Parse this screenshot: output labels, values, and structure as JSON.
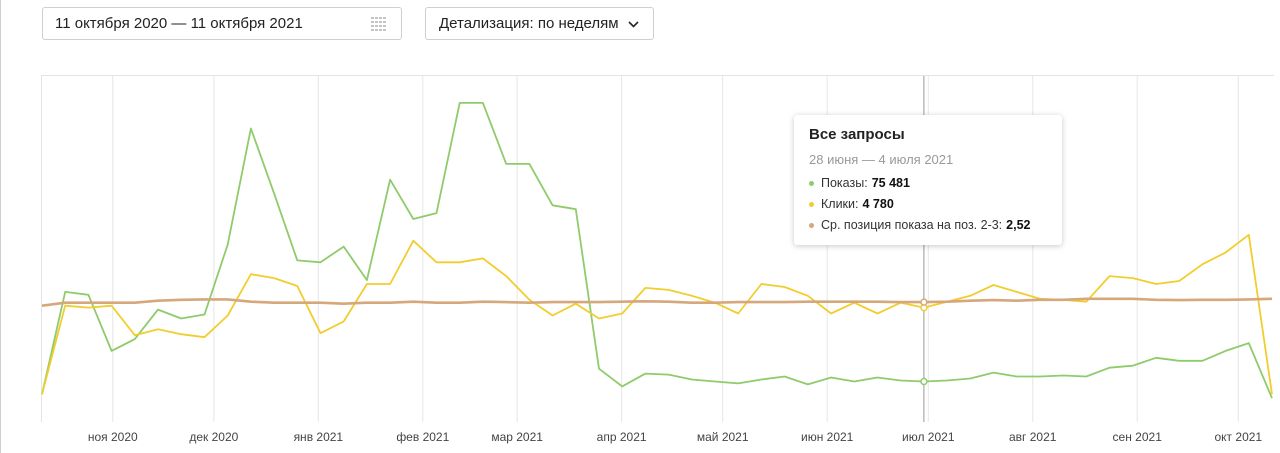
{
  "date_range": {
    "value": "11 октября 2020 — 11 октября 2021",
    "icon": "calendar-icon"
  },
  "detail_select": {
    "label": "Детализация: по неделям",
    "icon": "chevron-down-icon"
  },
  "tooltip": {
    "title": "Все запросы",
    "period": "28 июня — 4 июля 2021",
    "rows": [
      {
        "label": "Показы:",
        "value": "75 481",
        "color": "#8fcb6b"
      },
      {
        "label": "Клики:",
        "value": "4 780",
        "color": "#f2cd2e"
      },
      {
        "label": "Ср. позиция показа на поз. 2-3:",
        "value": "2,52",
        "color": "#d6a77b"
      }
    ]
  },
  "colors": {
    "shows": "#8fcb6b",
    "clicks": "#f2cd2e",
    "position": "#d6a77b",
    "grid": "#e6e6e6",
    "crosshair": "#999999"
  },
  "chart_data": {
    "type": "line",
    "x_start": "2020-10-11",
    "x_end": "2021-10-11",
    "x_tick_labels": [
      "ноя 2020",
      "дек 2020",
      "янв 2021",
      "фев 2021",
      "мар 2021",
      "апр 2021",
      "май 2021",
      "июн 2021",
      "июл 2021",
      "авг 2021",
      "сен 2021",
      "окт 2021"
    ],
    "x_tick_dates": [
      "2020-11-01",
      "2020-12-01",
      "2021-01-01",
      "2021-02-01",
      "2021-03-01",
      "2021-04-01",
      "2021-05-01",
      "2021-06-01",
      "2021-07-01",
      "2021-08-01",
      "2021-09-01",
      "2021-10-01"
    ],
    "y_axis_shown": false,
    "highlight_index": 38,
    "grid": true,
    "series": [
      {
        "name": "Показы",
        "key": "shows",
        "values": [
          0.08,
          0.6,
          0.585,
          0.3,
          0.36,
          0.51,
          0.465,
          0.485,
          0.84,
          1.43,
          1.1,
          0.76,
          0.75,
          0.83,
          0.66,
          1.17,
          0.97,
          1.0,
          1.56,
          1.56,
          1.25,
          1.25,
          1.04,
          1.02,
          0.21,
          0.12,
          0.185,
          0.18,
          0.155,
          0.145,
          0.135,
          0.155,
          0.17,
          0.13,
          0.165,
          0.145,
          0.165,
          0.15,
          0.145,
          0.15,
          0.16,
          0.19,
          0.17,
          0.17,
          0.175,
          0.17,
          0.215,
          0.225,
          0.265,
          0.25,
          0.25,
          0.3,
          0.34,
          0.06
        ]
      },
      {
        "name": "Клики",
        "key": "clicks",
        "values": [
          0.08,
          0.53,
          0.52,
          0.53,
          0.38,
          0.41,
          0.385,
          0.37,
          0.48,
          0.69,
          0.67,
          0.63,
          0.39,
          0.45,
          0.64,
          0.64,
          0.86,
          0.75,
          0.75,
          0.77,
          0.68,
          0.56,
          0.48,
          0.54,
          0.465,
          0.49,
          0.62,
          0.61,
          0.58,
          0.545,
          0.49,
          0.64,
          0.625,
          0.58,
          0.49,
          0.545,
          0.49,
          0.545,
          0.52,
          0.55,
          0.58,
          0.635,
          0.6,
          0.565,
          0.56,
          0.55,
          0.68,
          0.67,
          0.64,
          0.655,
          0.74,
          0.8,
          0.89,
          0.08
        ]
      },
      {
        "name": "Ср. позиция показа на поз. 2-3",
        "key": "position",
        "values": [
          0.53,
          0.545,
          0.545,
          0.545,
          0.545,
          0.555,
          0.56,
          0.562,
          0.562,
          0.55,
          0.545,
          0.545,
          0.545,
          0.54,
          0.545,
          0.545,
          0.55,
          0.545,
          0.545,
          0.55,
          0.548,
          0.545,
          0.548,
          0.548,
          0.548,
          0.55,
          0.552,
          0.55,
          0.545,
          0.545,
          0.548,
          0.548,
          0.548,
          0.55,
          0.55,
          0.55,
          0.55,
          0.548,
          0.548,
          0.55,
          0.555,
          0.558,
          0.555,
          0.56,
          0.56,
          0.565,
          0.565,
          0.565,
          0.56,
          0.558,
          0.56,
          0.56,
          0.562,
          0.565
        ]
      }
    ]
  }
}
